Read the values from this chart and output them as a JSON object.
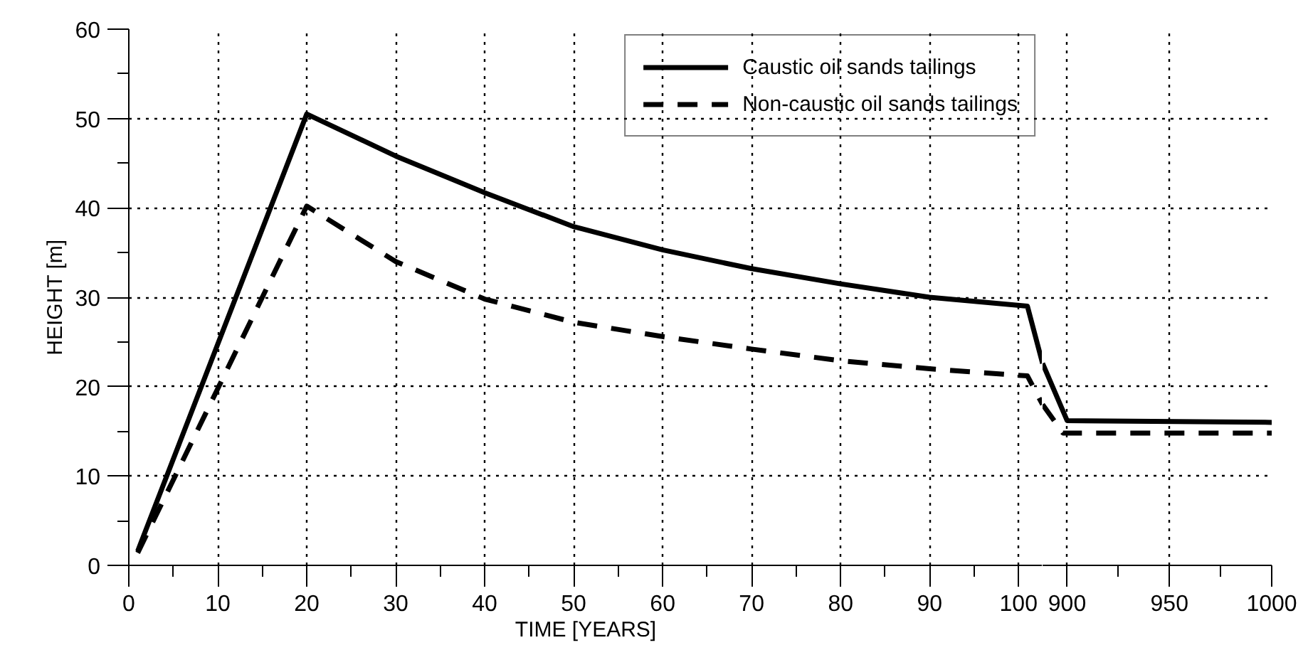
{
  "chart_data": [
    {
      "type": "line",
      "xlabel": "TIME [YEARS]",
      "ylabel": "HEIGHT [m]",
      "xlim": [
        0,
        102.7
      ],
      "ylim": [
        0,
        60
      ],
      "xticks": [
        0,
        10,
        20,
        30,
        40,
        50,
        60,
        70,
        80,
        90,
        100
      ],
      "yticks": [
        0,
        10,
        20,
        30,
        40,
        50,
        60
      ],
      "grid": true,
      "legend": "top right",
      "series": [
        {
          "name": "Caustic oil sands tailings",
          "color": "#000000",
          "line_style": "solid",
          "x": [
            1,
            20,
            30,
            40,
            50,
            60,
            70,
            80,
            90,
            101,
            102.7
          ],
          "values": [
            1.6,
            50.5,
            45.8,
            41.7,
            37.9,
            35.3,
            33.2,
            31.5,
            30,
            29,
            22.6
          ]
        },
        {
          "name": "Non-caustic oil sands tailings",
          "color": "#000000",
          "line_style": "dashed",
          "x": [
            1,
            20,
            30,
            40,
            50,
            60,
            70,
            80,
            90,
            101,
            102.7
          ],
          "values": [
            1.4,
            40.2,
            34,
            29.8,
            27.2,
            25.6,
            24.2,
            22.9,
            22,
            21.2,
            18
          ]
        }
      ]
    },
    {
      "type": "line",
      "xlim": [
        888,
        1000
      ],
      "ylim": [
        0,
        60
      ],
      "xticks": [
        900,
        950,
        1000
      ],
      "yticks": [
        0,
        10,
        20,
        30,
        40,
        50,
        60
      ],
      "grid": true,
      "tick_labels": "x",
      "series": [
        {
          "color": "#000000",
          "line_style": "solid",
          "x": [
            888,
            900,
            1000
          ],
          "values": [
            22.6,
            16.2,
            16
          ]
        },
        {
          "color": "#000000",
          "line_style": "dashed",
          "x": [
            888,
            898,
            1000
          ],
          "values": [
            18,
            14.8,
            14.8
          ]
        }
      ]
    }
  ]
}
